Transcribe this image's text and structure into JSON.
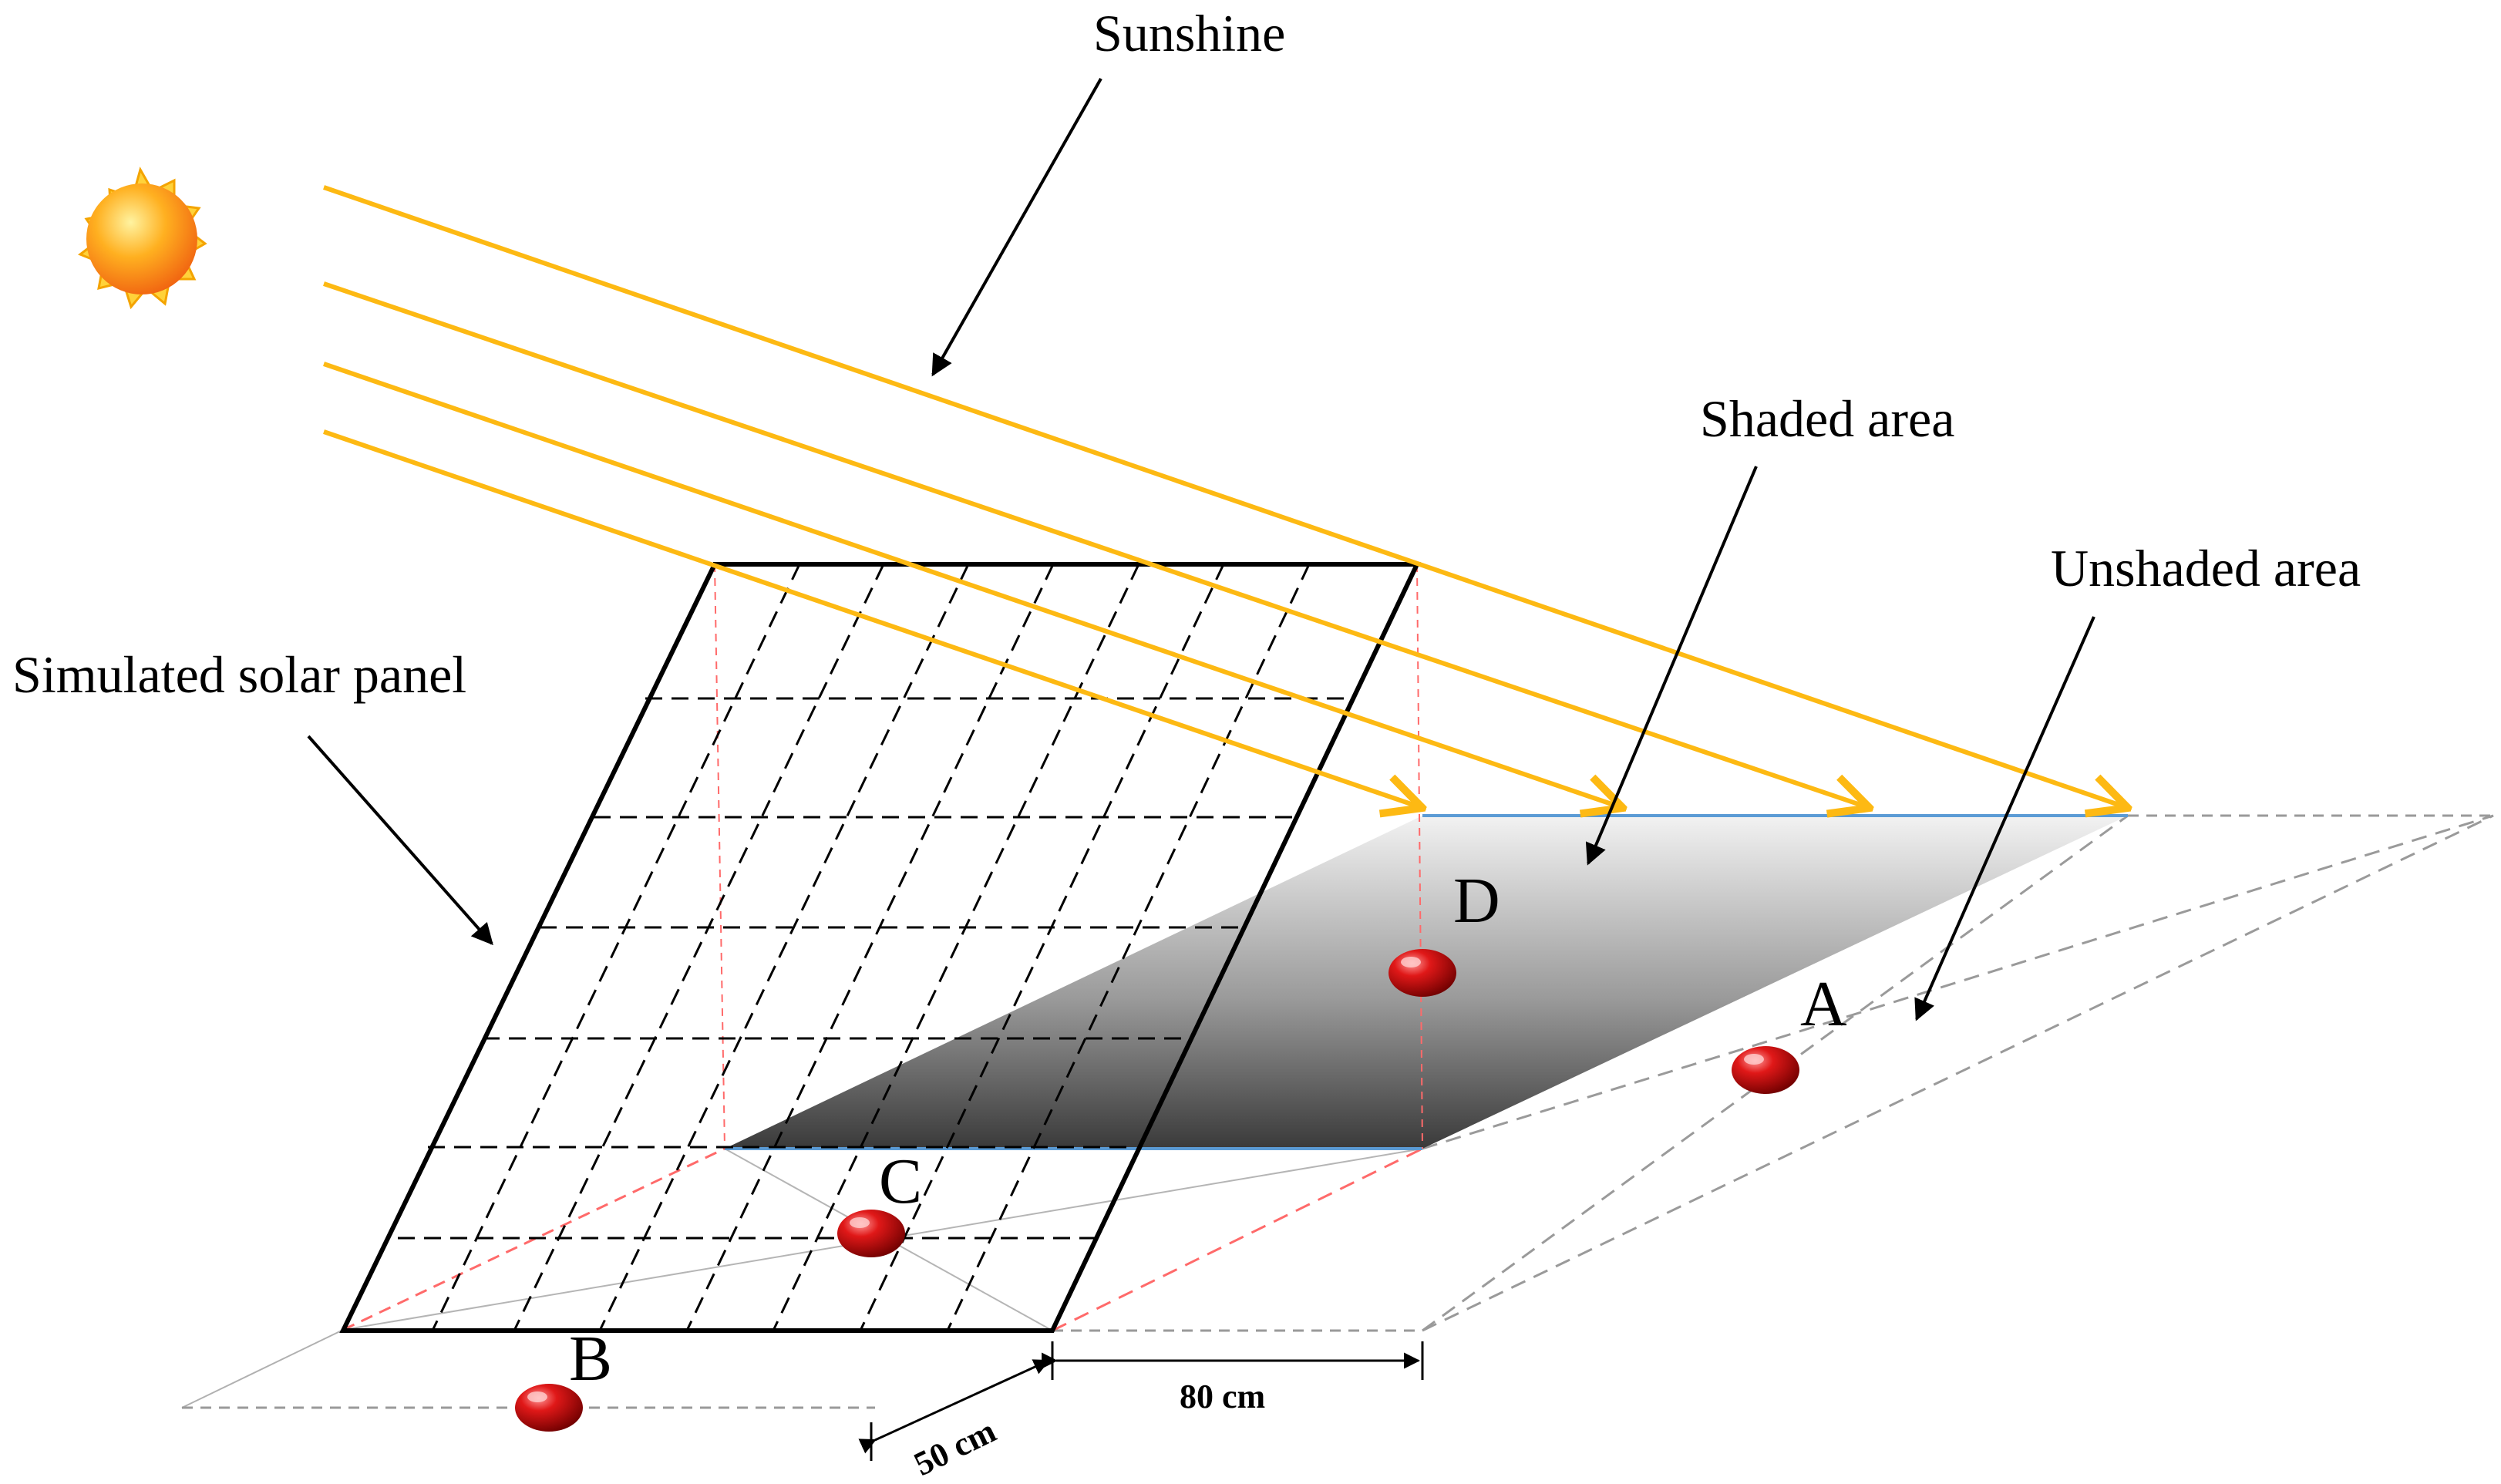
{
  "labels": {
    "sunshine": "Sunshine",
    "shaded_area": "Shaded area",
    "unshaded_area": "Unshaded area",
    "panel": "Simulated  solar panel"
  },
  "points": {
    "a": "A",
    "b": "B",
    "c": "C",
    "d": "D"
  },
  "dimensions": {
    "width": "80 cm",
    "depth": "50 cm"
  },
  "colors": {
    "sun_ray": "#FDB913",
    "sensor": "#D11A1A",
    "shadow_edge": "#5B9BD5"
  }
}
